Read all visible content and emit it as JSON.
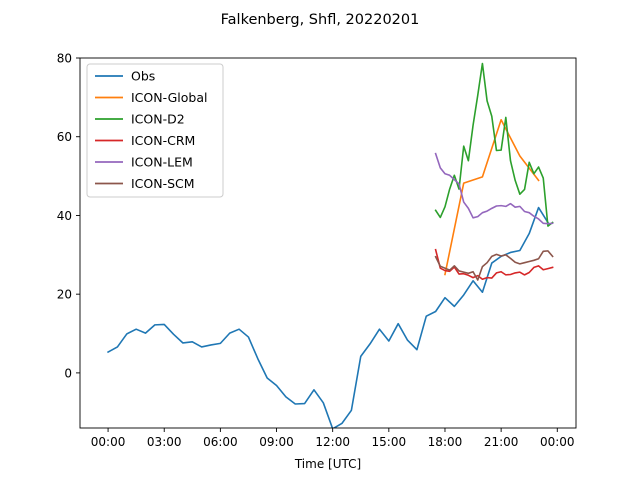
{
  "chart_data": {
    "type": "line",
    "title": "Falkenberg, Shfl, 20220201",
    "xlabel": "Time [UTC]",
    "ylabel": "",
    "xlim": [
      -1.5,
      25.0
    ],
    "ylim": [
      -14.0,
      80.0
    ],
    "x_unit": "hours UTC",
    "x_ticks": [
      0,
      3,
      6,
      9,
      12,
      15,
      18,
      21,
      24
    ],
    "x_tick_labels": [
      "00:00",
      "03:00",
      "06:00",
      "09:00",
      "12:00",
      "15:00",
      "18:00",
      "21:00",
      "00:00"
    ],
    "y_ticks": [
      0,
      20,
      40,
      60,
      80
    ],
    "y_tick_labels": [
      "0",
      "20",
      "40",
      "60",
      "80"
    ],
    "legend_position": "top-left",
    "grid": false,
    "series": [
      {
        "name": "Obs",
        "color": "#1f77b4",
        "x": [
          0,
          0.5,
          1,
          1.5,
          2,
          2.5,
          3,
          3.5,
          4,
          4.5,
          5,
          5.5,
          6,
          6.5,
          7,
          7.5,
          8,
          8.5,
          9,
          9.5,
          10,
          10.5,
          11,
          11.5,
          12,
          12.5,
          13,
          13.5,
          14,
          14.5,
          15,
          15.5,
          16,
          16.5,
          17,
          17.5,
          18,
          18.5,
          19,
          19.5,
          20,
          20.5,
          21,
          21.5,
          22,
          22.5,
          23,
          23.5
        ],
        "y": [
          5.3,
          6.6,
          9.9,
          11.1,
          10.1,
          12.2,
          12.3,
          9.8,
          7.6,
          7.9,
          6.6,
          7.1,
          7.5,
          10.1,
          11.1,
          9.1,
          3.6,
          -1.3,
          -3.2,
          -6.1,
          -7.9,
          -7.8,
          -4.3,
          -7.6,
          -14.2,
          -12.8,
          -9.5,
          4.2,
          7.4,
          11.1,
          8.1,
          12.5,
          8.3,
          5.9,
          14.4,
          15.6,
          19.1,
          16.9,
          19.8,
          23.4,
          20.5,
          27.9,
          29.6,
          30.6,
          31.1,
          35.4,
          42.0,
          38.2
        ]
      },
      {
        "name": "ICON-Global",
        "color": "#ff7f0e",
        "x": [
          18,
          19,
          20,
          21,
          22,
          23
        ],
        "y": [
          25.0,
          48.2,
          49.8,
          64.3,
          55.1,
          48.9
        ]
      },
      {
        "name": "ICON-D2",
        "color": "#2ca02c",
        "x": [
          17.5,
          17.75,
          18,
          18.25,
          18.5,
          18.75,
          19,
          19.25,
          19.5,
          19.75,
          20,
          20.25,
          20.5,
          20.75,
          21,
          21.25,
          21.5,
          21.75,
          22,
          22.25,
          22.5,
          22.75,
          23,
          23.25,
          23.5,
          23.75
        ],
        "y": [
          41.3,
          39.5,
          42.2,
          46.7,
          50.2,
          46.7,
          57.6,
          53.9,
          62.9,
          70.5,
          78.6,
          69.1,
          65.2,
          56.5,
          56.6,
          64.9,
          53.9,
          48.9,
          45.4,
          46.6,
          53.5,
          50.6,
          52.3,
          49.5,
          37.3,
          38.2
        ]
      },
      {
        "name": "ICON-CRM",
        "color": "#d62728",
        "x": [
          17.5,
          17.75,
          18,
          18.25,
          18.5,
          18.75,
          19,
          19.25,
          19.5,
          19.75,
          20,
          20.25,
          20.5,
          20.75,
          21,
          21.25,
          21.5,
          21.75,
          22,
          22.25,
          22.5,
          22.75,
          23,
          23.25,
          23.5,
          23.75
        ],
        "y": [
          31.3,
          26.6,
          26.0,
          25.8,
          26.9,
          25.1,
          25.2,
          24.8,
          24.2,
          24.7,
          23.8,
          24.2,
          24.1,
          25.4,
          25.7,
          24.9,
          25.0,
          25.4,
          25.6,
          24.9,
          25.5,
          26.8,
          27.2,
          26.2,
          26.5,
          26.8
        ]
      },
      {
        "name": "ICON-LEM",
        "color": "#9467bd",
        "x": [
          17.5,
          17.75,
          18,
          18.25,
          18.5,
          18.75,
          19,
          19.25,
          19.5,
          19.75,
          20,
          20.25,
          20.5,
          20.75,
          21,
          21.25,
          21.5,
          21.75,
          22,
          22.25,
          22.5,
          22.75,
          23,
          23.25,
          23.5,
          23.75
        ],
        "y": [
          55.7,
          52.1,
          50.6,
          50.2,
          49.1,
          48.0,
          43.4,
          41.8,
          39.4,
          39.7,
          40.7,
          41.1,
          41.8,
          42.4,
          42.5,
          42.3,
          43.0,
          42.1,
          42.3,
          41.0,
          40.7,
          39.8,
          39.1,
          38.0,
          37.9,
          38.0
        ]
      },
      {
        "name": "ICON-SCM",
        "color": "#8c564b",
        "x": [
          17.5,
          17.75,
          18,
          18.25,
          18.5,
          18.75,
          19,
          19.25,
          19.5,
          19.75,
          20,
          20.25,
          20.5,
          20.75,
          21,
          21.25,
          21.5,
          21.75,
          22,
          22.25,
          22.5,
          22.75,
          23,
          23.25,
          23.5,
          23.75
        ],
        "y": [
          29.5,
          27.1,
          26.6,
          26.1,
          27.2,
          25.9,
          25.6,
          25.3,
          25.7,
          23.6,
          27.0,
          28.0,
          29.6,
          30.1,
          29.7,
          30.0,
          29.1,
          28.1,
          27.7,
          28.0,
          28.3,
          28.6,
          29.0,
          30.9,
          31.0,
          29.6
        ]
      }
    ]
  }
}
